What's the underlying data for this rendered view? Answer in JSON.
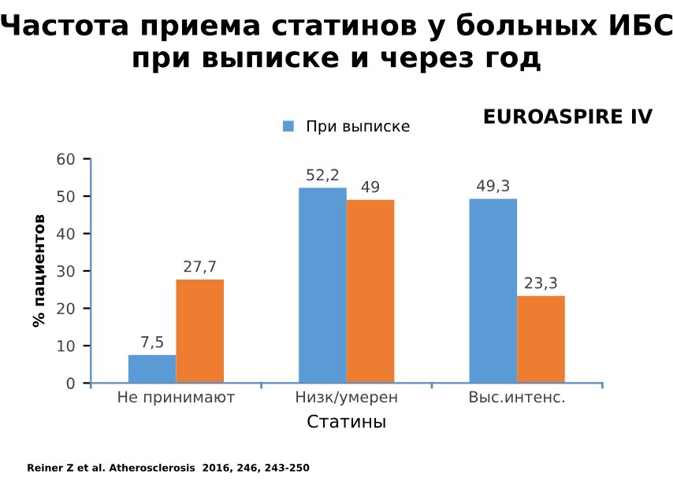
{
  "chart_data": {
    "type": "bar",
    "title": "Частота приема статинов у больных ИБС\nпри выписке и через год",
    "xlabel": "Статины",
    "ylabel": "% пациентов",
    "categories": [
      "Не принимают",
      "Низк/умерен",
      "Выс.интенс."
    ],
    "series": [
      {
        "name": "При выписке",
        "color": "#5b9bd5",
        "values": [
          7.5,
          52.2,
          49.3
        ],
        "value_labels": [
          "7,5",
          "52,2",
          "49,3"
        ]
      },
      {
        "color": "#ed7d31",
        "values": [
          27.7,
          49,
          23.3
        ],
        "value_labels": [
          "27,7",
          "49",
          "23,3"
        ]
      }
    ],
    "ylim": [
      0,
      60
    ],
    "yticks": [
      0,
      10,
      20,
      30,
      40,
      50,
      60
    ],
    "grid": false,
    "legend": "top",
    "annotations": [
      "EUROASPIRE IV",
      "Reiner Z et al. Atherosclerosis  2016, 246, 243-250"
    ]
  }
}
